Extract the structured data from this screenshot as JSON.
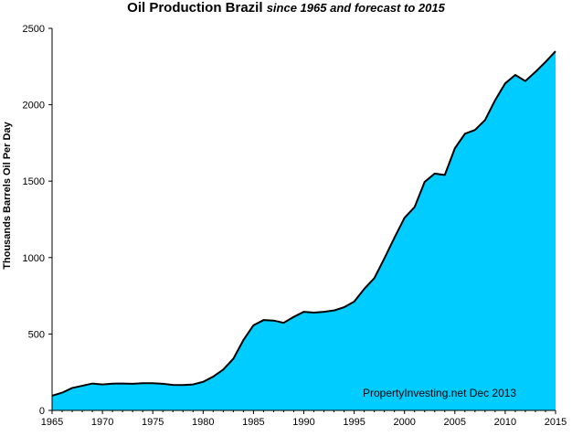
{
  "chart_data": {
    "type": "area",
    "title": "Oil Production Brazil",
    "subtitle": "since 1965 and forecast to 2015",
    "xlabel": "",
    "ylabel": "Thousands Barrels Oil Per Day",
    "xlim": [
      1965,
      2015
    ],
    "ylim": [
      0,
      2500
    ],
    "x_ticks": [
      1965,
      1970,
      1975,
      1980,
      1985,
      1990,
      1995,
      2000,
      2005,
      2010,
      2015
    ],
    "y_ticks": [
      0,
      500,
      1000,
      1500,
      2000,
      2500
    ],
    "grid": false,
    "fill_color": "#00ccff",
    "line_color": "#000000",
    "annotation": "PropertyInvesting.net  Dec 2013",
    "x": [
      1965,
      1966,
      1967,
      1968,
      1969,
      1970,
      1971,
      1972,
      1973,
      1974,
      1975,
      1976,
      1977,
      1978,
      1979,
      1980,
      1981,
      1982,
      1983,
      1984,
      1985,
      1986,
      1987,
      1988,
      1989,
      1990,
      1991,
      1992,
      1993,
      1994,
      1995,
      1996,
      1997,
      1998,
      1999,
      2000,
      2001,
      2002,
      2003,
      2004,
      2005,
      2006,
      2007,
      2008,
      2009,
      2010,
      2011,
      2012,
      2013,
      2014,
      2015
    ],
    "values": [
      96,
      116,
      147,
      161,
      176,
      170,
      175,
      176,
      174,
      178,
      178,
      174,
      167,
      166,
      170,
      187,
      221,
      267,
      338,
      460,
      557,
      591,
      588,
      573,
      612,
      645,
      640,
      645,
      654,
      675,
      712,
      795,
      865,
      995,
      1130,
      1260,
      1330,
      1495,
      1550,
      1540,
      1715,
      1810,
      1835,
      1900,
      2030,
      2140,
      2195,
      2155,
      2215,
      2280,
      2350
    ]
  }
}
